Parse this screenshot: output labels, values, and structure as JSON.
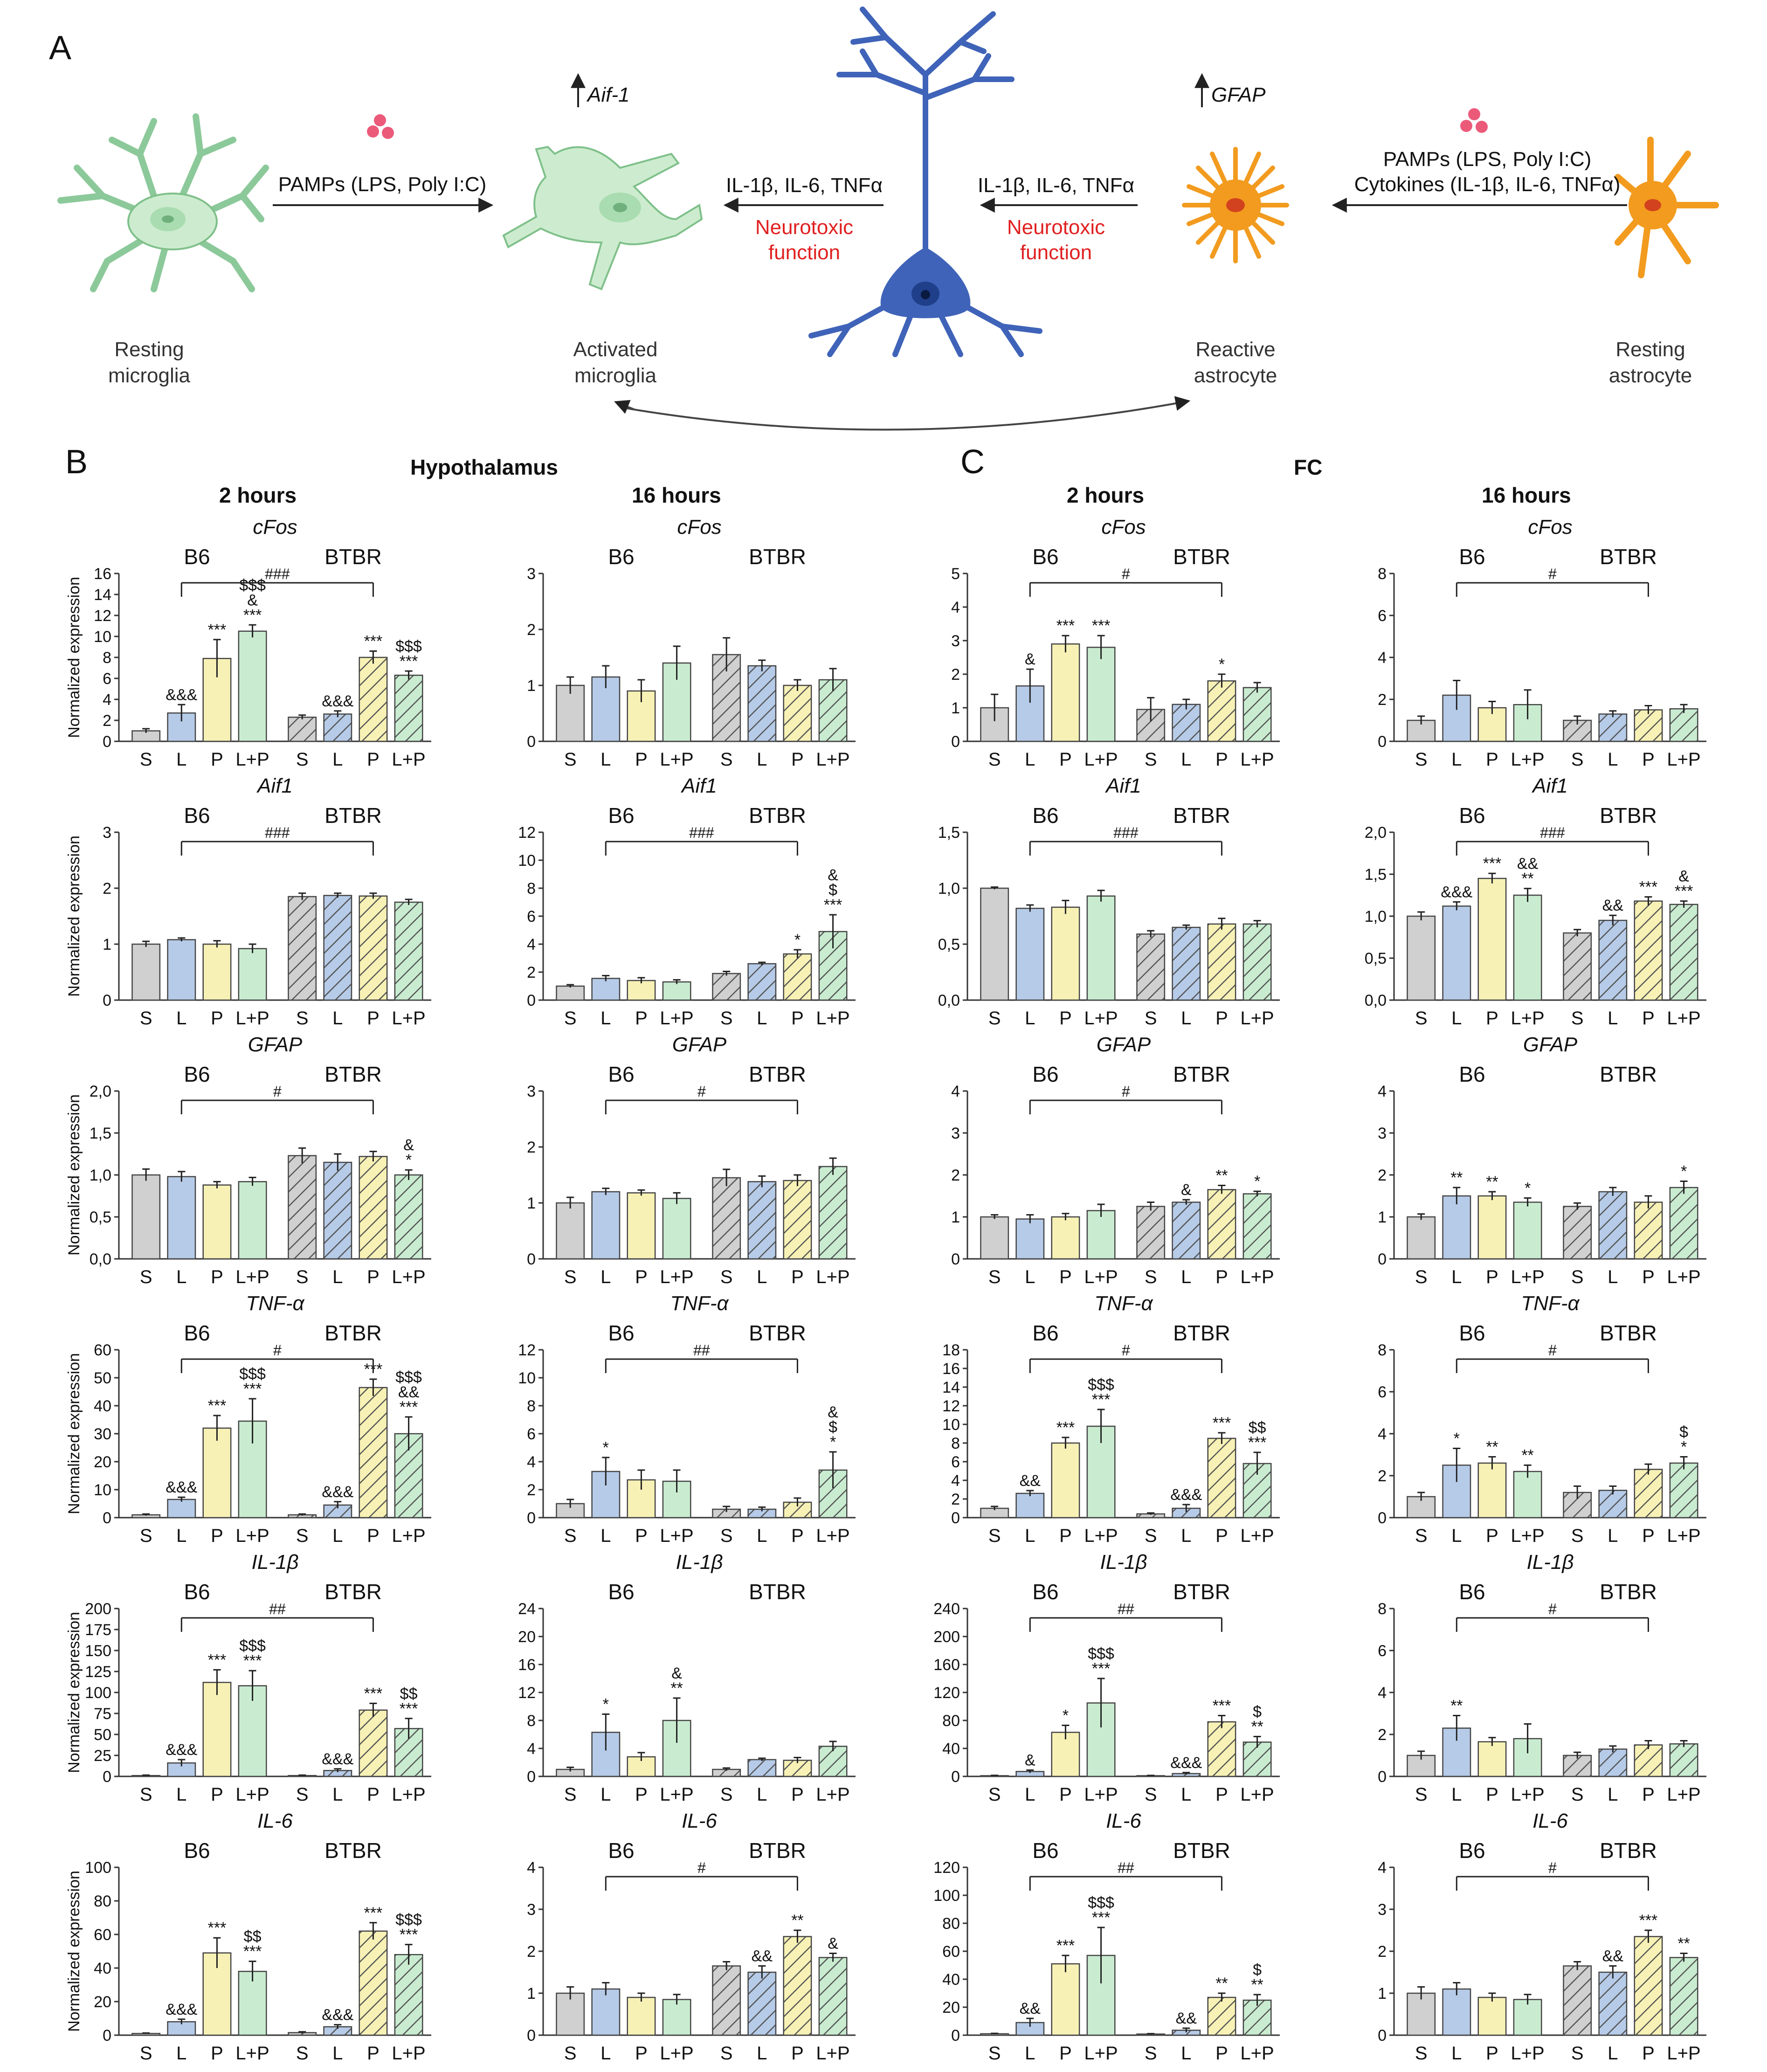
{
  "panel_a": {
    "letter": "A",
    "pamps_left": "PAMPs (LPS, Poly I:C)",
    "pamps_right_1": "PAMPs (LPS, Poly I:C)",
    "pamps_right_2": "Cytokines (IL-1β, IL-6, TNFα)",
    "aif_label": "Aif-1",
    "gfap_label": "GFAP",
    "cytokines_left": "IL-1β, IL-6, TNFα",
    "cytokines_right": "IL-1β, IL-6, TNFα",
    "neurotoxic_left_1": "Neurotoxic",
    "neurotoxic_left_2": "function",
    "neurotoxic_right_1": "Neurotoxic",
    "neurotoxic_right_2": "function",
    "resting_microglia_1": "Resting",
    "resting_microglia_2": "microglia",
    "activated_microglia_1": "Activated",
    "activated_microglia_2": "microglia",
    "reactive_astrocyte_1": "Reactive",
    "reactive_astrocyte_2": "astrocyte",
    "resting_astrocyte_1": "Resting",
    "resting_astrocyte_2": "astrocyte",
    "colors": {
      "microglia": "#cdeccf",
      "microglia_edge": "#7fc08a",
      "astrocyte": "#f29b1f",
      "neuron": "#3f63b8",
      "dots": "#ec5a7a"
    }
  },
  "headers": {
    "B": "B",
    "C": "C",
    "hypothalamus": "Hypothalamus",
    "fc": "FC",
    "col1": "2 hours",
    "col2": "16 hours",
    "col3": "2 hours",
    "col4": "16 hours"
  },
  "common": {
    "groups": [
      "B6",
      "BTBR"
    ],
    "x_labels": [
      "S",
      "L",
      "P",
      "L+P",
      "S",
      "L",
      "P",
      "L+P"
    ],
    "ylabel": "Normalized expression",
    "bar_colors": [
      "#d0d0d0",
      "#b6cbe8",
      "#f7f1b6",
      "#c9ecd0",
      "#d0d0d0",
      "#b6cbe8",
      "#f7f1b6",
      "#c9ecd0"
    ],
    "hatched": [
      false,
      false,
      false,
      false,
      true,
      true,
      true,
      true
    ]
  },
  "chart_data": [
    {
      "type": "bar",
      "gene": "cFos",
      "region": "Hypothalamus",
      "time": "2 hours",
      "ylim": [
        0,
        16
      ],
      "ticks": [
        "0",
        "2",
        "4",
        "6",
        "8",
        "10",
        "12",
        "14",
        "16"
      ],
      "values": [
        1.0,
        2.7,
        7.9,
        10.5,
        2.3,
        2.6,
        8.0,
        6.3
      ],
      "errors": [
        0.2,
        0.8,
        1.8,
        0.6,
        0.2,
        0.3,
        0.6,
        0.4
      ],
      "marks": [
        "",
        "&&&",
        "***",
        "$$$\n&\n***",
        "",
        "&&&",
        "***",
        "$$$\n***"
      ],
      "hash": "###"
    },
    {
      "type": "bar",
      "gene": "cFos",
      "region": "Hypothalamus",
      "time": "16 hours",
      "ylim": [
        0,
        3
      ],
      "ticks": [
        "0",
        "1",
        "2",
        "3"
      ],
      "values": [
        1.0,
        1.15,
        0.9,
        1.4,
        1.55,
        1.35,
        1.0,
        1.1
      ],
      "errors": [
        0.15,
        0.2,
        0.2,
        0.3,
        0.3,
        0.1,
        0.1,
        0.2
      ],
      "marks": [
        "",
        "",
        "",
        "",
        "",
        "",
        "",
        ""
      ],
      "hash": ""
    },
    {
      "type": "bar",
      "gene": "cFos",
      "region": "FC",
      "time": "2 hours",
      "ylim": [
        0,
        5
      ],
      "ticks": [
        "0",
        "1",
        "2",
        "3",
        "4",
        "5"
      ],
      "values": [
        1.0,
        1.65,
        2.9,
        2.8,
        0.95,
        1.1,
        1.8,
        1.6
      ],
      "errors": [
        0.4,
        0.5,
        0.25,
        0.35,
        0.35,
        0.15,
        0.2,
        0.15
      ],
      "marks": [
        "",
        "&",
        "***",
        "***",
        "",
        "",
        "*",
        ""
      ],
      "hash": "#"
    },
    {
      "type": "bar",
      "gene": "cFos",
      "region": "FC",
      "time": "16 hours",
      "ylim": [
        0,
        8
      ],
      "ticks": [
        "0",
        "2",
        "4",
        "6",
        "8"
      ],
      "values": [
        1.0,
        2.2,
        1.6,
        1.75,
        1.0,
        1.3,
        1.5,
        1.55
      ],
      "errors": [
        0.2,
        0.7,
        0.3,
        0.7,
        0.2,
        0.15,
        0.2,
        0.2
      ],
      "marks": [
        "",
        "",
        "",
        "",
        "",
        "",
        "",
        ""
      ],
      "hash": "#"
    },
    {
      "type": "bar",
      "gene": "Aif1",
      "region": "Hypothalamus",
      "time": "2 hours",
      "ylim": [
        0,
        3
      ],
      "ticks": [
        "0",
        "1",
        "2",
        "3"
      ],
      "values": [
        1.0,
        1.08,
        1.0,
        0.92,
        1.85,
        1.87,
        1.86,
        1.75
      ],
      "errors": [
        0.05,
        0.03,
        0.06,
        0.08,
        0.06,
        0.04,
        0.05,
        0.05
      ],
      "marks": [
        "",
        "",
        "",
        "",
        "",
        "",
        "",
        ""
      ],
      "hash": "###"
    },
    {
      "type": "bar",
      "gene": "Aif1",
      "region": "Hypothalamus",
      "time": "16 hours",
      "ylim": [
        0,
        12
      ],
      "ticks": [
        "0",
        "2",
        "4",
        "6",
        "8",
        "10",
        "12"
      ],
      "values": [
        1.0,
        1.55,
        1.4,
        1.3,
        1.9,
        2.6,
        3.3,
        4.9
      ],
      "errors": [
        0.1,
        0.2,
        0.2,
        0.15,
        0.15,
        0.1,
        0.3,
        1.2
      ],
      "marks": [
        "",
        "",
        "",
        "",
        "",
        "",
        "*",
        "&\n$\n***"
      ],
      "hash": "###"
    },
    {
      "type": "bar",
      "gene": "Aif1",
      "region": "FC",
      "time": "2 hours",
      "ylim": [
        0,
        1.5
      ],
      "ticks": [
        "0,0",
        "0,5",
        "1,0",
        "1,5"
      ],
      "values": [
        1.0,
        0.82,
        0.83,
        0.93,
        0.59,
        0.65,
        0.68,
        0.68
      ],
      "errors": [
        0.01,
        0.03,
        0.06,
        0.05,
        0.03,
        0.02,
        0.05,
        0.03
      ],
      "marks": [
        "",
        "",
        "",
        "",
        "",
        "",
        "",
        ""
      ],
      "hash": "###"
    },
    {
      "type": "bar",
      "gene": "Aif1",
      "region": "FC",
      "time": "16 hours",
      "ylim": [
        0,
        2
      ],
      "ticks": [
        "0,0",
        "0,5",
        "1,0",
        "1,5",
        "2,0"
      ],
      "values": [
        1.0,
        1.12,
        1.45,
        1.25,
        0.8,
        0.95,
        1.18,
        1.14
      ],
      "errors": [
        0.05,
        0.05,
        0.06,
        0.08,
        0.04,
        0.06,
        0.05,
        0.04
      ],
      "marks": [
        "",
        "&&&",
        "***",
        "&&\n**",
        "",
        "&&",
        "***",
        "&\n***"
      ],
      "hash": "###"
    },
    {
      "type": "bar",
      "gene": "GFAP",
      "region": "Hypothalamus",
      "time": "2 hours",
      "ylim": [
        0,
        2
      ],
      "ticks": [
        "0,0",
        "0,5",
        "1,0",
        "1,5",
        "2,0"
      ],
      "values": [
        1.0,
        0.98,
        0.88,
        0.92,
        1.23,
        1.15,
        1.22,
        1.0
      ],
      "errors": [
        0.07,
        0.06,
        0.04,
        0.05,
        0.09,
        0.1,
        0.06,
        0.06
      ],
      "marks": [
        "",
        "",
        "",
        "",
        "",
        "",
        "",
        "&\n*"
      ],
      "hash": "#"
    },
    {
      "type": "bar",
      "gene": "GFAP",
      "region": "Hypothalamus",
      "time": "16 hours",
      "ylim": [
        0,
        3
      ],
      "ticks": [
        "0",
        "1",
        "2",
        "3"
      ],
      "values": [
        1.0,
        1.2,
        1.18,
        1.08,
        1.45,
        1.38,
        1.4,
        1.65
      ],
      "errors": [
        0.1,
        0.06,
        0.05,
        0.1,
        0.15,
        0.1,
        0.1,
        0.15
      ],
      "marks": [
        "",
        "",
        "",
        "",
        "",
        "",
        "",
        ""
      ],
      "hash": "#"
    },
    {
      "type": "bar",
      "gene": "GFAP",
      "region": "FC",
      "time": "2 hours",
      "ylim": [
        0,
        4
      ],
      "ticks": [
        "0",
        "1",
        "2",
        "3",
        "4"
      ],
      "values": [
        1.0,
        0.95,
        1.0,
        1.15,
        1.25,
        1.35,
        1.65,
        1.55
      ],
      "errors": [
        0.05,
        0.1,
        0.08,
        0.15,
        0.1,
        0.06,
        0.1,
        0.06
      ],
      "marks": [
        "",
        "",
        "",
        "",
        "",
        "&",
        "**",
        "*"
      ],
      "hash": "#"
    },
    {
      "type": "bar",
      "gene": "GFAP",
      "region": "FC",
      "time": "16 hours",
      "ylim": [
        0,
        4
      ],
      "ticks": [
        "0",
        "1",
        "2",
        "3",
        "4"
      ],
      "values": [
        1.0,
        1.5,
        1.5,
        1.35,
        1.25,
        1.6,
        1.35,
        1.7
      ],
      "errors": [
        0.07,
        0.2,
        0.1,
        0.1,
        0.08,
        0.1,
        0.15,
        0.15
      ],
      "marks": [
        "",
        "**",
        "**",
        "*",
        "",
        "",
        "",
        "*"
      ],
      "hash": ""
    },
    {
      "type": "bar",
      "gene": "TNF-α",
      "region": "Hypothalamus",
      "time": "2 hours",
      "ylim": [
        0,
        60
      ],
      "ticks": [
        "0",
        "10",
        "20",
        "30",
        "40",
        "50",
        "60"
      ],
      "values": [
        1.0,
        6.5,
        32.0,
        34.5,
        1.0,
        4.5,
        46.5,
        30.0
      ],
      "errors": [
        0.3,
        0.8,
        4.5,
        8.0,
        0.3,
        1.2,
        3.0,
        6.0
      ],
      "marks": [
        "",
        "&&&",
        "***",
        "$$$\n***",
        "",
        "&&&",
        "***",
        "$$$\n&&\n***"
      ],
      "hash": "#"
    },
    {
      "type": "bar",
      "gene": "TNF-α",
      "region": "Hypothalamus",
      "time": "16 hours",
      "ylim": [
        0,
        12
      ],
      "ticks": [
        "0",
        "2",
        "4",
        "6",
        "8",
        "10",
        "12"
      ],
      "values": [
        1.0,
        3.3,
        2.7,
        2.6,
        0.6,
        0.6,
        1.1,
        3.4
      ],
      "errors": [
        0.3,
        1.0,
        0.7,
        0.8,
        0.2,
        0.15,
        0.3,
        1.3
      ],
      "marks": [
        "",
        "*",
        "",
        "",
        "",
        "",
        "",
        "&\n$\n*"
      ],
      "hash": "##"
    },
    {
      "type": "bar",
      "gene": "TNF-α",
      "region": "FC",
      "time": "2 hours",
      "ylim": [
        0,
        18
      ],
      "ticks": [
        "0",
        "2",
        "4",
        "6",
        "8",
        "10",
        "12",
        "14",
        "16",
        "18"
      ],
      "values": [
        1.0,
        2.6,
        8.0,
        9.8,
        0.4,
        1.0,
        8.5,
        5.8
      ],
      "errors": [
        0.2,
        0.3,
        0.6,
        1.8,
        0.1,
        0.4,
        0.6,
        1.2
      ],
      "marks": [
        "",
        "&&",
        "***",
        "$$$\n***",
        "",
        "&&&",
        "***",
        "$$\n***"
      ],
      "hash": "#"
    },
    {
      "type": "bar",
      "gene": "TNF-α",
      "region": "FC",
      "time": "16 hours",
      "ylim": [
        0,
        8
      ],
      "ticks": [
        "0",
        "2",
        "4",
        "6",
        "8"
      ],
      "values": [
        1.0,
        2.5,
        2.6,
        2.2,
        1.2,
        1.3,
        2.3,
        2.6
      ],
      "errors": [
        0.2,
        0.8,
        0.3,
        0.3,
        0.3,
        0.2,
        0.25,
        0.3
      ],
      "marks": [
        "",
        "*",
        "**",
        "**",
        "",
        "",
        "",
        "$\n*"
      ],
      "hash": "#"
    },
    {
      "type": "bar",
      "gene": "IL-1β",
      "region": "Hypothalamus",
      "time": "2 hours",
      "ylim": [
        0,
        200
      ],
      "ticks": [
        "0",
        "25",
        "50",
        "75",
        "100",
        "125",
        "150",
        "175",
        "200"
      ],
      "values": [
        1.0,
        16.0,
        112.0,
        108.0,
        1.0,
        7.0,
        79.0,
        57.0
      ],
      "errors": [
        0.5,
        4.0,
        15.0,
        18.0,
        0.5,
        2.0,
        8.0,
        12.0
      ],
      "marks": [
        "",
        "&&&",
        "***",
        "$$$\n***",
        "",
        "&&&",
        "***",
        "$$\n***"
      ],
      "hash": "##"
    },
    {
      "type": "bar",
      "gene": "IL-1β",
      "region": "Hypothalamus",
      "time": "16 hours",
      "ylim": [
        0,
        24
      ],
      "ticks": [
        "0",
        "4",
        "8",
        "12",
        "16",
        "20",
        "24"
      ],
      "values": [
        1.0,
        6.3,
        2.8,
        8.0,
        1.0,
        2.4,
        2.3,
        4.3
      ],
      "errors": [
        0.3,
        2.6,
        0.6,
        3.2,
        0.2,
        0.2,
        0.4,
        0.7
      ],
      "marks": [
        "",
        "*",
        "",
        "&\n**",
        "",
        "",
        "",
        ""
      ],
      "hash": ""
    },
    {
      "type": "bar",
      "gene": "IL-1β",
      "region": "FC",
      "time": "2 hours",
      "ylim": [
        0,
        240
      ],
      "ticks": [
        "0",
        "40",
        "80",
        "120",
        "160",
        "200",
        "240"
      ],
      "values": [
        1.0,
        7.0,
        63.0,
        105.0,
        1.0,
        4.0,
        78.0,
        49.0
      ],
      "errors": [
        0.5,
        2.0,
        10.0,
        35.0,
        0.4,
        1.5,
        9.0,
        8.0
      ],
      "marks": [
        "",
        "&",
        "*",
        "$$$\n***",
        "",
        "&&&",
        "***",
        "$\n**"
      ],
      "hash": "##"
    },
    {
      "type": "bar",
      "gene": "IL-1β",
      "region": "FC",
      "time": "16 hours",
      "ylim": [
        0,
        8
      ],
      "ticks": [
        "0",
        "2",
        "4",
        "6",
        "8"
      ],
      "values": [
        1.0,
        2.3,
        1.65,
        1.8,
        1.0,
        1.3,
        1.5,
        1.55
      ],
      "errors": [
        0.2,
        0.6,
        0.2,
        0.7,
        0.15,
        0.15,
        0.2,
        0.15
      ],
      "marks": [
        "",
        "**",
        "",
        "",
        "",
        "",
        "",
        ""
      ],
      "hash": "#"
    },
    {
      "type": "bar",
      "gene": "IL-6",
      "region": "Hypothalamus",
      "time": "2 hours",
      "ylim": [
        0,
        100
      ],
      "ticks": [
        "0",
        "20",
        "40",
        "60",
        "80",
        "100"
      ],
      "values": [
        1.0,
        8.0,
        49.0,
        38.0,
        1.5,
        5.0,
        62.0,
        48.0
      ],
      "errors": [
        0.3,
        1.5,
        9.0,
        6.0,
        0.5,
        1.2,
        5.0,
        6.0
      ],
      "marks": [
        "",
        "&&&",
        "***",
        "$$\n***",
        "",
        "&&&",
        "***",
        "$$$\n***"
      ],
      "hash": ""
    },
    {
      "type": "bar",
      "gene": "IL-6",
      "region": "Hypothalamus",
      "time": "16 hours",
      "ylim": [
        0,
        4
      ],
      "ticks": [
        "0",
        "1",
        "2",
        "3",
        "4"
      ],
      "values": [
        1.0,
        1.1,
        0.9,
        0.85,
        1.65,
        1.5,
        2.35,
        1.85
      ],
      "errors": [
        0.15,
        0.15,
        0.1,
        0.12,
        0.1,
        0.15,
        0.15,
        0.1
      ],
      "marks": [
        "",
        "",
        "",
        "",
        "",
        "&&",
        "**",
        "&"
      ],
      "hash": "#"
    },
    {
      "type": "bar",
      "gene": "IL-6",
      "region": "FC",
      "time": "2 hours",
      "ylim": [
        0,
        120
      ],
      "ticks": [
        "0",
        "20",
        "40",
        "60",
        "80",
        "100",
        "120"
      ],
      "values": [
        1.0,
        9.0,
        51.0,
        57.0,
        0.8,
        3.5,
        27.0,
        25.0
      ],
      "errors": [
        0.3,
        3.0,
        6.0,
        20.0,
        0.3,
        1.5,
        3.0,
        4.0
      ],
      "marks": [
        "",
        "&&",
        "***",
        "$$$\n***",
        "",
        "&&",
        "**",
        "$\n**"
      ],
      "hash": "##"
    },
    {
      "type": "bar",
      "gene": "IL-6",
      "region": "FC",
      "time": "16 hours",
      "ylim": [
        0,
        4
      ],
      "ticks": [
        "0",
        "1",
        "2",
        "3",
        "4"
      ],
      "values": [
        1.0,
        1.1,
        0.9,
        0.85,
        1.65,
        1.5,
        2.35,
        1.85
      ],
      "errors": [
        0.15,
        0.15,
        0.1,
        0.12,
        0.1,
        0.15,
        0.15,
        0.1
      ],
      "marks": [
        "",
        "",
        "",
        "",
        "",
        "&&",
        "***",
        "**"
      ],
      "hash": "#"
    }
  ]
}
